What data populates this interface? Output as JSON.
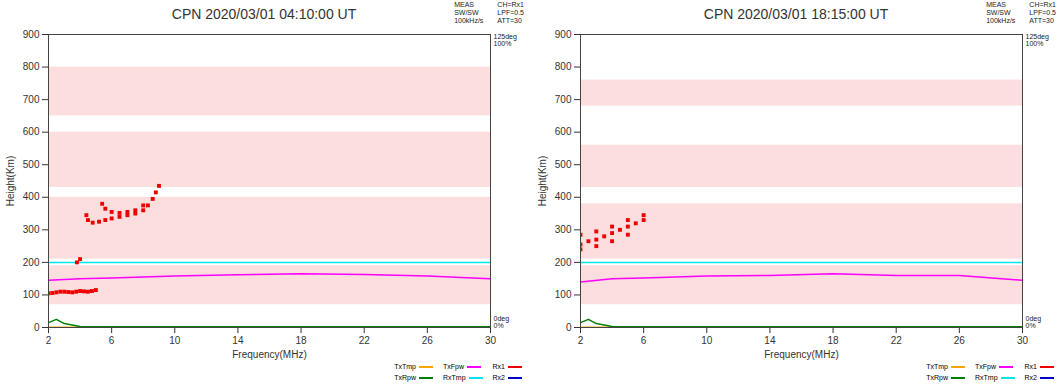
{
  "chart_data": [
    {
      "type": "scatter",
      "title": "CPN 2020/03/01 04:10:00 UT",
      "meta": [
        [
          "MEAS",
          "CH=Rx1"
        ],
        [
          "SW/SW",
          "LPF=0.5"
        ],
        [
          "100kHz/s",
          "ATT=30"
        ]
      ],
      "x_label": "Frequency(MHz)",
      "y_label": "Height(Km)",
      "xlim": [
        2,
        30
      ],
      "ylim": [
        0,
        900
      ],
      "xticks": [
        2,
        6,
        10,
        14,
        18,
        22,
        26,
        30
      ],
      "yticks": [
        0,
        100,
        200,
        300,
        400,
        500,
        600,
        700,
        800,
        900
      ],
      "right_axis_labels": {
        "top": [
          "125deg",
          "100%"
        ],
        "bottom": [
          "0deg",
          "0%"
        ]
      },
      "noise_bands": [
        [
          70,
          190
        ],
        [
          210,
          400
        ],
        [
          430,
          600
        ],
        [
          650,
          800
        ]
      ],
      "legend": "bottom",
      "series": [
        {
          "name": "TxTmp",
          "color": "#ffa500",
          "type": "line",
          "x": [
            2,
            30
          ],
          "values": [
            1,
            1
          ]
        },
        {
          "name": "TxRpw",
          "color": "#008000",
          "type": "line",
          "x": [
            2,
            2.5,
            3,
            4,
            30
          ],
          "values": [
            15,
            25,
            12,
            3,
            2
          ]
        },
        {
          "name": "TxFpw",
          "color": "#ff00ff",
          "type": "line",
          "x": [
            2,
            4,
            6,
            8,
            10,
            14,
            18,
            22,
            26,
            30
          ],
          "values": [
            145,
            150,
            152,
            155,
            158,
            162,
            165,
            163,
            158,
            150
          ]
        },
        {
          "name": "RxTmp",
          "color": "#00e5e5",
          "type": "line",
          "x": [
            2,
            30
          ],
          "values": [
            200,
            200
          ]
        },
        {
          "name": "Rx1",
          "color": "#ee0000",
          "type": "scatter",
          "x": [
            2,
            2.25,
            2.5,
            2.75,
            3,
            3.25,
            3.5,
            3.75,
            4,
            4.25,
            4.5,
            4.75,
            5,
            3.8,
            4.0,
            4.4,
            4.5,
            4.8,
            5.2,
            5.6,
            6,
            6.5,
            7,
            7.5,
            8,
            8.3,
            8.6,
            8.8,
            9,
            5.4,
            5.6,
            6,
            6.5,
            7,
            7.5,
            8
          ],
          "values": [
            105,
            106,
            108,
            110,
            110,
            109,
            108,
            110,
            112,
            111,
            110,
            112,
            115,
            200,
            210,
            345,
            330,
            322,
            325,
            330,
            335,
            340,
            345,
            350,
            360,
            375,
            395,
            415,
            435,
            380,
            365,
            355,
            352,
            355,
            360,
            375
          ]
        },
        {
          "name": "Rx2",
          "color": "#0000cc",
          "type": "scatter",
          "x": [],
          "values": []
        }
      ]
    },
    {
      "type": "scatter",
      "title": "CPN 2020/03/01 18:15:00 UT",
      "meta": [
        [
          "MEAS",
          "CH=Rx1"
        ],
        [
          "SW/SW",
          "LPF=0.5"
        ],
        [
          "100kHz/s",
          "ATT=30"
        ]
      ],
      "x_label": "Frequency(MHz)",
      "y_label": "Height(Km)",
      "xlim": [
        2,
        30
      ],
      "ylim": [
        0,
        900
      ],
      "xticks": [
        2,
        6,
        10,
        14,
        18,
        22,
        26,
        30
      ],
      "yticks": [
        0,
        100,
        200,
        300,
        400,
        500,
        600,
        700,
        800,
        900
      ],
      "right_axis_labels": {
        "top": [
          "125deg",
          "100%"
        ],
        "bottom": [
          "0deg",
          "0%"
        ]
      },
      "noise_bands": [
        [
          70,
          190
        ],
        [
          210,
          380
        ],
        [
          430,
          560
        ],
        [
          680,
          760
        ]
      ],
      "legend": "bottom",
      "series": [
        {
          "name": "TxTmp",
          "color": "#ffa500",
          "type": "line",
          "x": [
            2,
            30
          ],
          "values": [
            1,
            1
          ]
        },
        {
          "name": "TxRpw",
          "color": "#008000",
          "type": "line",
          "x": [
            2,
            2.5,
            3,
            4,
            30
          ],
          "values": [
            15,
            25,
            12,
            3,
            2
          ]
        },
        {
          "name": "TxFpw",
          "color": "#ff00ff",
          "type": "line",
          "x": [
            2,
            4,
            6,
            8,
            10,
            14,
            18,
            22,
            26,
            30
          ],
          "values": [
            140,
            150,
            152,
            155,
            158,
            160,
            165,
            160,
            160,
            145
          ]
        },
        {
          "name": "RxTmp",
          "color": "#00e5e5",
          "type": "line",
          "x": [
            2,
            30
          ],
          "values": [
            200,
            200
          ]
        },
        {
          "name": "Rx1",
          "color": "#ee0000",
          "type": "scatter",
          "x": [
            2,
            2.5,
            3,
            3.5,
            4,
            4.5,
            5,
            5.5,
            6,
            2,
            3,
            4,
            5,
            6,
            2,
            3,
            4,
            5
          ],
          "values": [
            255,
            265,
            270,
            280,
            290,
            300,
            310,
            320,
            330,
            285,
            295,
            310,
            330,
            345,
            240,
            250,
            265,
            285
          ]
        },
        {
          "name": "Rx2",
          "color": "#0000cc",
          "type": "scatter",
          "x": [],
          "values": []
        }
      ]
    }
  ]
}
